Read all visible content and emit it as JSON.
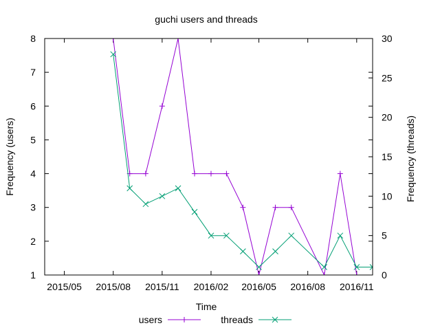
{
  "chart_data": {
    "type": "line",
    "title": "guchi users and threads",
    "xlabel": "Time",
    "ylabel": "Frequency (users)",
    "y2label": "Frequency (threads)",
    "x_ticks": [
      "2015/05",
      "2015/08",
      "2015/11",
      "2016/02",
      "2016/05",
      "2016/08",
      "2016/11"
    ],
    "x_tick_dates": [
      "2015-05-01",
      "2015-08-01",
      "2015-11-01",
      "2016-02-01",
      "2016-05-01",
      "2016-08-01",
      "2016-11-01"
    ],
    "xlim": [
      "2015-03-25",
      "2016-12-01"
    ],
    "y_ticks": [
      1,
      2,
      3,
      4,
      5,
      6,
      7,
      8
    ],
    "ylim": [
      1,
      8
    ],
    "y2_ticks": [
      0,
      5,
      10,
      15,
      20,
      25,
      30
    ],
    "y2lim": [
      0,
      30
    ],
    "grid": false,
    "legend_position": "bottom-center",
    "series": [
      {
        "name": "users",
        "axis": "left",
        "color": "#9400D3",
        "marker": "plus",
        "x": [
          "2015-08-01",
          "2015-09-01",
          "2015-10-01",
          "2015-11-01",
          "2015-12-01",
          "2016-01-01",
          "2016-02-01",
          "2016-03-01",
          "2016-04-01",
          "2016-05-01",
          "2016-06-01",
          "2016-07-01",
          "2016-09-01",
          "2016-10-01",
          "2016-11-01",
          "2016-12-01"
        ],
        "values": [
          8,
          4,
          4,
          6,
          8,
          4,
          4,
          4,
          3,
          1,
          3,
          3,
          1,
          4,
          1,
          1
        ]
      },
      {
        "name": "threads",
        "axis": "right",
        "color": "#009E73",
        "marker": "cross",
        "x": [
          "2015-08-01",
          "2015-09-01",
          "2015-10-01",
          "2015-11-01",
          "2015-12-01",
          "2016-01-01",
          "2016-02-01",
          "2016-03-01",
          "2016-04-01",
          "2016-05-01",
          "2016-06-01",
          "2016-07-01",
          "2016-09-01",
          "2016-10-01",
          "2016-11-01",
          "2016-12-01"
        ],
        "values": [
          28,
          11,
          9,
          10,
          11,
          8,
          5,
          5,
          3,
          1,
          3,
          5,
          1,
          5,
          1,
          1
        ]
      }
    ]
  }
}
